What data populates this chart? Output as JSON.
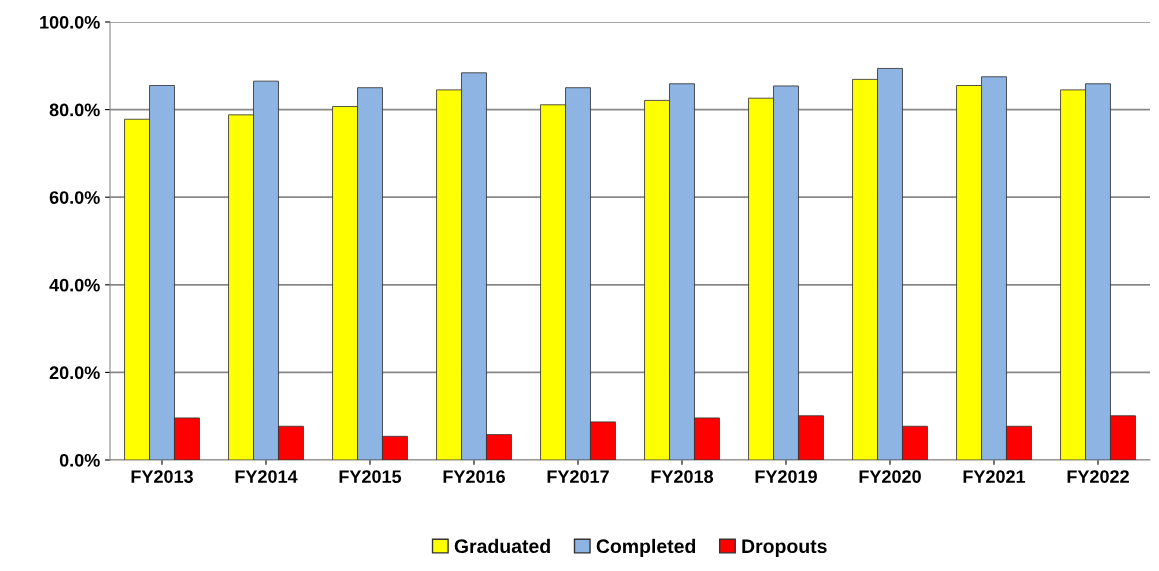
{
  "chart_data": {
    "type": "bar",
    "categories": [
      "FY2013",
      "FY2014",
      "FY2015",
      "FY2016",
      "FY2017",
      "FY2018",
      "FY2019",
      "FY2020",
      "FY2021",
      "FY2022"
    ],
    "series": [
      {
        "name": "Graduated",
        "color": "#ffff00",
        "values": [
          77.8,
          78.8,
          80.7,
          84.5,
          81.1,
          82.1,
          82.6,
          86.9,
          85.5,
          84.5
        ]
      },
      {
        "name": "Completed",
        "color": "#8db4e2",
        "values": [
          85.5,
          86.5,
          85.0,
          88.4,
          85.0,
          85.9,
          85.4,
          89.4,
          87.5,
          85.9
        ]
      },
      {
        "name": "Dropouts",
        "color": "#ff0000",
        "values": [
          9.6,
          7.7,
          5.4,
          5.8,
          8.7,
          9.6,
          10.1,
          7.7,
          7.7,
          10.1
        ]
      }
    ],
    "ylim": [
      0,
      100
    ],
    "yticks": [
      {
        "value": 0,
        "label": "0.0%"
      },
      {
        "value": 20,
        "label": "20.0%"
      },
      {
        "value": 40,
        "label": "40.0%"
      },
      {
        "value": 60,
        "label": "60.0%"
      },
      {
        "value": 80,
        "label": "80.0%"
      },
      {
        "value": 100,
        "label": "100.0%"
      }
    ],
    "grid": "y",
    "legend": "bottom"
  }
}
